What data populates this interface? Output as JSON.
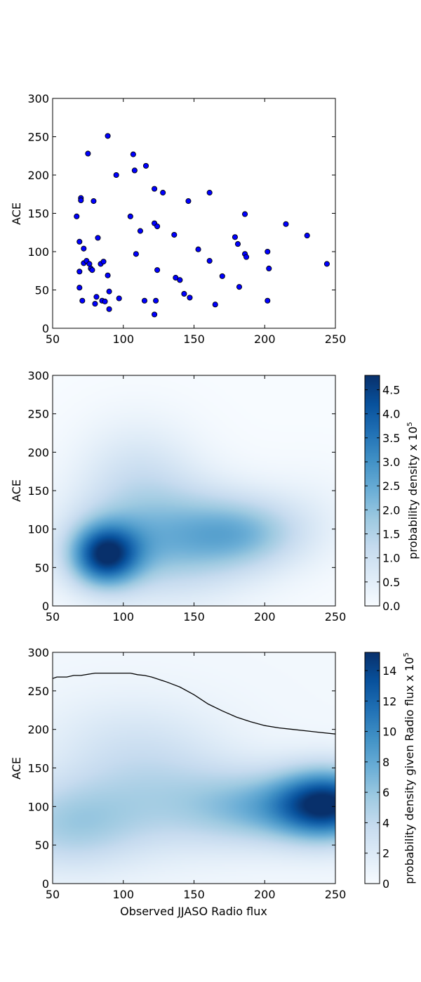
{
  "chart_data": [
    {
      "type": "scatter",
      "ylabel": "ACE",
      "xlim": [
        50,
        250
      ],
      "ylim": [
        0,
        300
      ],
      "x_ticks": [
        50,
        100,
        150,
        200,
        250
      ],
      "y_ticks": [
        0,
        50,
        100,
        150,
        200,
        250,
        300
      ],
      "marker_color": "#0000ff",
      "points": [
        {
          "x": 67,
          "y": 146
        },
        {
          "x": 69,
          "y": 53
        },
        {
          "x": 69,
          "y": 74
        },
        {
          "x": 69,
          "y": 113
        },
        {
          "x": 70,
          "y": 170
        },
        {
          "x": 70,
          "y": 167
        },
        {
          "x": 71,
          "y": 36
        },
        {
          "x": 72,
          "y": 85
        },
        {
          "x": 72,
          "y": 104
        },
        {
          "x": 74,
          "y": 88
        },
        {
          "x": 75,
          "y": 228
        },
        {
          "x": 76,
          "y": 84
        },
        {
          "x": 77,
          "y": 78
        },
        {
          "x": 78,
          "y": 76
        },
        {
          "x": 79,
          "y": 166
        },
        {
          "x": 80,
          "y": 32
        },
        {
          "x": 81,
          "y": 41
        },
        {
          "x": 82,
          "y": 118
        },
        {
          "x": 84,
          "y": 84
        },
        {
          "x": 85,
          "y": 36
        },
        {
          "x": 86,
          "y": 87
        },
        {
          "x": 87,
          "y": 35
        },
        {
          "x": 89,
          "y": 69
        },
        {
          "x": 89,
          "y": 251
        },
        {
          "x": 90,
          "y": 48
        },
        {
          "x": 90,
          "y": 25
        },
        {
          "x": 95,
          "y": 200
        },
        {
          "x": 97,
          "y": 39
        },
        {
          "x": 105,
          "y": 146
        },
        {
          "x": 107,
          "y": 227
        },
        {
          "x": 108,
          "y": 206
        },
        {
          "x": 109,
          "y": 97
        },
        {
          "x": 112,
          "y": 127
        },
        {
          "x": 115,
          "y": 36
        },
        {
          "x": 116,
          "y": 212
        },
        {
          "x": 122,
          "y": 18
        },
        {
          "x": 122,
          "y": 182
        },
        {
          "x": 122,
          "y": 137
        },
        {
          "x": 123,
          "y": 36
        },
        {
          "x": 124,
          "y": 76
        },
        {
          "x": 124,
          "y": 133
        },
        {
          "x": 128,
          "y": 177
        },
        {
          "x": 136,
          "y": 122
        },
        {
          "x": 137,
          "y": 66
        },
        {
          "x": 140,
          "y": 63
        },
        {
          "x": 143,
          "y": 45
        },
        {
          "x": 146,
          "y": 166
        },
        {
          "x": 147,
          "y": 40
        },
        {
          "x": 153,
          "y": 103
        },
        {
          "x": 161,
          "y": 177
        },
        {
          "x": 161,
          "y": 88
        },
        {
          "x": 165,
          "y": 31
        },
        {
          "x": 170,
          "y": 68
        },
        {
          "x": 179,
          "y": 119
        },
        {
          "x": 181,
          "y": 110
        },
        {
          "x": 182,
          "y": 54
        },
        {
          "x": 186,
          "y": 149
        },
        {
          "x": 186,
          "y": 97
        },
        {
          "x": 187,
          "y": 93
        },
        {
          "x": 202,
          "y": 100
        },
        {
          "x": 202,
          "y": 36
        },
        {
          "x": 203,
          "y": 78
        },
        {
          "x": 215,
          "y": 136
        },
        {
          "x": 230,
          "y": 121
        },
        {
          "x": 244,
          "y": 84
        }
      ]
    },
    {
      "type": "heatmap",
      "ylabel": "ACE",
      "xlim": [
        50,
        250
      ],
      "ylim": [
        0,
        300
      ],
      "x_ticks": [
        50,
        100,
        150,
        200,
        250
      ],
      "y_ticks": [
        0,
        50,
        100,
        150,
        200,
        250,
        300
      ],
      "colormap": "Blues",
      "colorbar": {
        "label": "probability density x 10",
        "label_exponent": "5",
        "range": [
          0,
          4.8
        ],
        "ticks": [
          "0.0",
          "0.5",
          "1.0",
          "1.5",
          "2.0",
          "2.5",
          "3.0",
          "3.5",
          "4.0",
          "4.5"
        ]
      },
      "peak": {
        "x": 87,
        "y": 66,
        "value": 4.8
      }
    },
    {
      "type": "heatmap",
      "xlabel": "Observed JJASO Radio flux",
      "ylabel": "ACE",
      "xlim": [
        50,
        250
      ],
      "ylim": [
        0,
        300
      ],
      "x_ticks": [
        50,
        100,
        150,
        200,
        250
      ],
      "y_ticks": [
        0,
        50,
        100,
        150,
        200,
        250,
        300
      ],
      "colormap": "Blues",
      "colorbar": {
        "label": "probability density given Radio flux x 10",
        "label_exponent": "5",
        "range": [
          0,
          15.2
        ],
        "ticks": [
          "0",
          "2",
          "4",
          "6",
          "8",
          "10",
          "12",
          "14"
        ]
      },
      "contour_line": {
        "x": [
          50,
          53,
          60,
          65,
          70,
          80,
          90,
          100,
          105,
          110,
          115,
          120,
          130,
          140,
          150,
          160,
          170,
          180,
          190,
          200,
          210,
          220,
          230,
          240,
          250
        ],
        "y": [
          266,
          268,
          268,
          270,
          270,
          273,
          273,
          273,
          273,
          271,
          270,
          268,
          262,
          255,
          245,
          233,
          224,
          216,
          210,
          205,
          202,
          200,
          198,
          196,
          194
        ]
      }
    }
  ]
}
